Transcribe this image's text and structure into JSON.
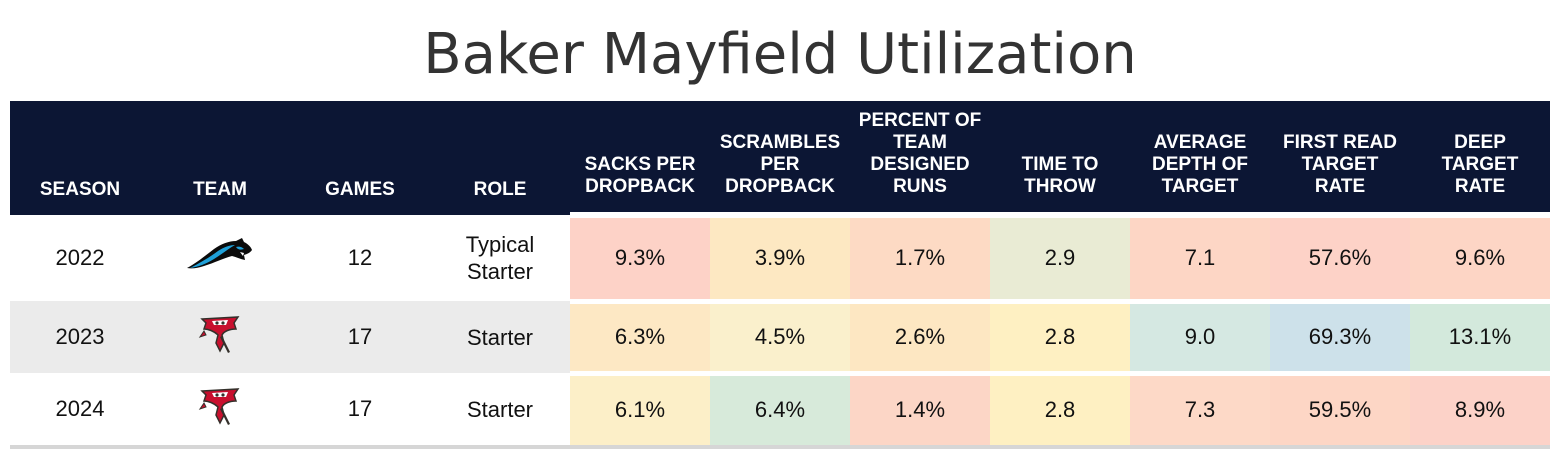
{
  "title": "Baker Mayfield Utilization",
  "columns": [
    "SEASON",
    "TEAM",
    "GAMES",
    "ROLE",
    "SACKS PER DROPBACK",
    "SCRAMBLES PER DROPBACK",
    "PERCENT OF TEAM DESIGNED RUNS",
    "TIME TO THROW",
    "AVERAGE DEPTH OF TARGET",
    "FIRST READ TARGET RATE",
    "DEEP TARGET RATE"
  ],
  "rows": [
    {
      "season": "2022",
      "team_icon": "carolina-panthers-logo-icon",
      "games": "12",
      "role": "Typical Starter",
      "metrics": [
        "9.3%",
        "3.9%",
        "1.7%",
        "2.9",
        "7.1",
        "57.6%",
        "9.6%"
      ],
      "colors": [
        "#fdd2c7",
        "#fde8c2",
        "#fddac4",
        "#e9ebd4",
        "#fdd6c5",
        "#fdd2c7",
        "#fdd5c5"
      ]
    },
    {
      "season": "2023",
      "team_icon": "tampa-bay-buccaneers-logo-icon",
      "games": "17",
      "role": "Starter",
      "metrics": [
        "6.3%",
        "4.5%",
        "2.6%",
        "2.8",
        "9.0",
        "69.3%",
        "13.1%"
      ],
      "colors": [
        "#fde8c4",
        "#faf0cc",
        "#fde7c2",
        "#fef0c2",
        "#d5e8e2",
        "#cde1ea",
        "#d3e9dc"
      ]
    },
    {
      "season": "2024",
      "team_icon": "tampa-bay-buccaneers-logo-icon",
      "games": "17",
      "role": "Starter",
      "metrics": [
        "6.1%",
        "6.4%",
        "1.4%",
        "2.8",
        "7.3",
        "59.5%",
        "8.9%"
      ],
      "colors": [
        "#fcefc8",
        "#d7eada",
        "#fcd6c6",
        "#fef0c2",
        "#fdd9c7",
        "#fdd6c5",
        "#fcd2c8"
      ]
    }
  ],
  "chart_data": {
    "type": "table",
    "title": "Baker Mayfield Utilization",
    "columns": [
      "SEASON",
      "TEAM",
      "GAMES",
      "ROLE",
      "SACKS PER DROPBACK",
      "SCRAMBLES PER DROPBACK",
      "PERCENT OF TEAM DESIGNED RUNS",
      "TIME TO THROW",
      "AVERAGE DEPTH OF TARGET",
      "FIRST READ TARGET RATE",
      "DEEP TARGET RATE"
    ],
    "rows": [
      [
        "2022",
        "Carolina Panthers",
        12,
        "Typical Starter",
        "9.3%",
        "3.9%",
        "1.7%",
        2.9,
        7.1,
        "57.6%",
        "9.6%"
      ],
      [
        "2023",
        "Tampa Bay Buccaneers",
        17,
        "Starter",
        "6.3%",
        "4.5%",
        "2.6%",
        2.8,
        9.0,
        "69.3%",
        "13.1%"
      ],
      [
        "2024",
        "Tampa Bay Buccaneers",
        17,
        "Starter",
        "6.1%",
        "6.4%",
        "1.4%",
        2.8,
        7.3,
        "59.5%",
        "8.9%"
      ]
    ]
  }
}
